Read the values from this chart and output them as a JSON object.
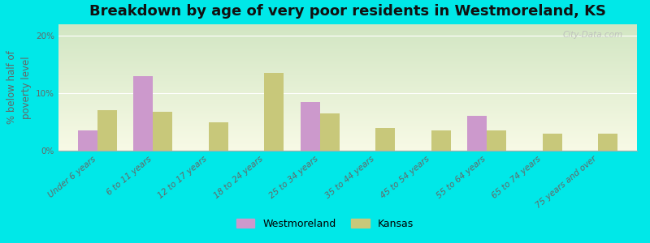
{
  "title": "Breakdown by age of very poor residents in Westmoreland, KS",
  "categories": [
    "Under 6 years",
    "6 to 11 years",
    "12 to 17 years",
    "18 to 24 years",
    "25 to 34 years",
    "35 to 44 years",
    "45 to 54 years",
    "55 to 64 years",
    "65 to 74 years",
    "75 years and over"
  ],
  "westmoreland": [
    3.5,
    13.0,
    0.0,
    0.0,
    8.5,
    0.0,
    0.0,
    6.0,
    0.0,
    0.0
  ],
  "kansas": [
    7.0,
    6.8,
    5.0,
    13.5,
    6.5,
    4.0,
    3.5,
    3.5,
    3.0,
    3.0
  ],
  "westmoreland_color": "#cc99cc",
  "kansas_color": "#c8c87a",
  "background_outer": "#00e8e8",
  "ylabel": "% below half of\npoverty level",
  "ylim": [
    0,
    22
  ],
  "yticks": [
    0,
    10,
    20
  ],
  "ytick_labels": [
    "0%",
    "10%",
    "20%"
  ],
  "bar_width": 0.35,
  "legend_westmoreland": "Westmoreland",
  "legend_kansas": "Kansas",
  "title_fontsize": 13,
  "axis_label_fontsize": 8.5,
  "tick_fontsize": 7.5
}
